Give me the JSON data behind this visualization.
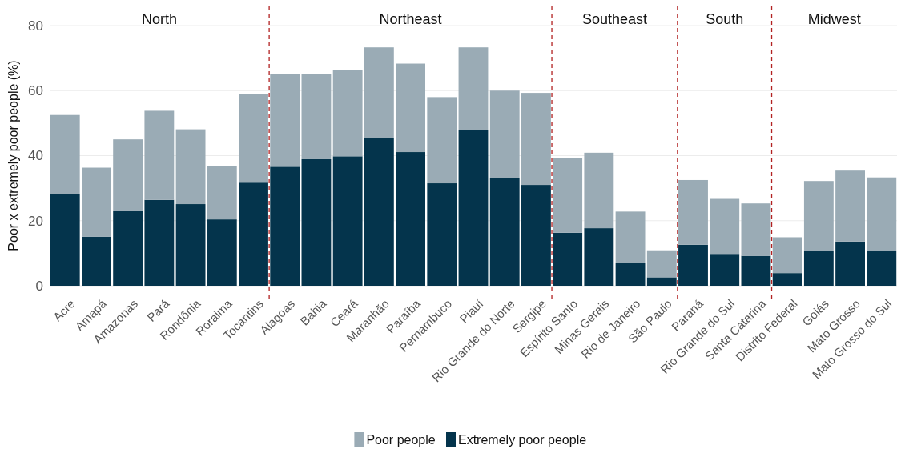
{
  "chart_data": {
    "type": "bar",
    "stacked": true,
    "ylabel": "Poor x extremely poor people (%)",
    "categories": [
      "Acre",
      "Amapá",
      "Amazonas",
      "Pará",
      "Rondônia",
      "Roraima",
      "Tocantins",
      "Alagoas",
      "Bahia",
      "Ceará",
      "Maranhão",
      "Paraíba",
      "Pernambuco",
      "Piauí",
      "Rio Grande do Norte",
      "Sergipe",
      "Espírito Santo",
      "Minas Gerais",
      "Rio de Janeiro",
      "São Paulo",
      "Paraná",
      "Rio Grande do Sul",
      "Santa Catarina",
      "Distrito Federal",
      "Goiás",
      "Mato Grosso",
      "Mato Grosso do Sul"
    ],
    "series": [
      {
        "name": "Extremely poor people",
        "color": "#04344c",
        "values": [
          28.3,
          15.1,
          22.9,
          26.4,
          25.1,
          20.4,
          31.7,
          36.6,
          38.9,
          39.8,
          45.5,
          41.1,
          31.5,
          47.8,
          33.1,
          31.0,
          16.3,
          17.7,
          7.1,
          2.6,
          12.6,
          9.8,
          9.2,
          3.9,
          10.8,
          13.6,
          10.8
        ]
      },
      {
        "name": "Poor people",
        "color": "#9aabb5",
        "values": [
          24.2,
          21.2,
          22.1,
          27.4,
          23.0,
          16.3,
          27.3,
          28.6,
          26.3,
          26.6,
          27.8,
          27.2,
          26.5,
          25.5,
          26.9,
          28.3,
          23.0,
          23.2,
          15.7,
          8.3,
          19.9,
          16.9,
          16.1,
          11.0,
          21.4,
          21.8,
          22.5
        ]
      }
    ],
    "ylim": [
      0,
      80
    ],
    "yticks": [
      0,
      20,
      40,
      60,
      80
    ],
    "grid": "y",
    "legend": "bottom",
    "annotations": [
      "North",
      "Northeast",
      "Southeast",
      "South",
      "Midwest"
    ]
  }
}
